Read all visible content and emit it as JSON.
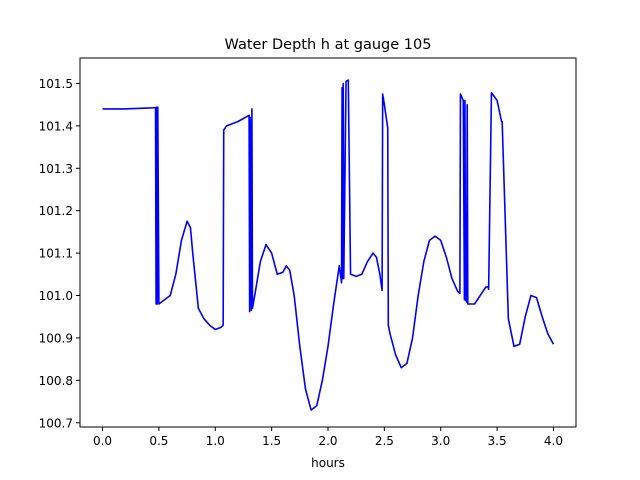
{
  "chart_data": {
    "type": "line",
    "title": "Water Depth h at gauge 105",
    "xlabel": "hours",
    "ylabel": "",
    "xlim": [
      -0.2,
      4.2
    ],
    "ylim": [
      100.69,
      101.56
    ],
    "xticks": [
      0.0,
      0.5,
      1.0,
      1.5,
      2.0,
      2.5,
      3.0,
      3.5,
      4.0
    ],
    "xtick_labels": [
      "0.0",
      "0.5",
      "1.0",
      "1.5",
      "2.0",
      "2.5",
      "3.0",
      "3.5",
      "4.0"
    ],
    "yticks": [
      100.7,
      100.8,
      100.9,
      101.0,
      101.1,
      101.2,
      101.3,
      101.4,
      101.5
    ],
    "ytick_labels": [
      "100.7",
      "100.8",
      "100.9",
      "101.0",
      "101.1",
      "101.2",
      "101.3",
      "101.4",
      "101.5"
    ],
    "grid": false,
    "line_color": "#0000ff",
    "series": [
      {
        "x": [
          0.0,
          0.2,
          0.4,
          0.47,
          0.475,
          0.48,
          0.485,
          0.49,
          0.5,
          0.6,
          0.65,
          0.7,
          0.75,
          0.78,
          0.8,
          0.85,
          0.9,
          0.95,
          1.0,
          1.05,
          1.07,
          1.075,
          1.1,
          1.2,
          1.3,
          1.305,
          1.31,
          1.32,
          1.325,
          1.33,
          1.35,
          1.4,
          1.45,
          1.5,
          1.55,
          1.6,
          1.63,
          1.66,
          1.7,
          1.75,
          1.8,
          1.85,
          1.9,
          1.95,
          2.0,
          2.05,
          2.1,
          2.12,
          2.125,
          2.13,
          2.135,
          2.14,
          2.16,
          2.18,
          2.2,
          2.25,
          2.3,
          2.35,
          2.4,
          2.43,
          2.46,
          2.48,
          2.485,
          2.5,
          2.53,
          2.535,
          2.55,
          2.6,
          2.65,
          2.7,
          2.75,
          2.8,
          2.85,
          2.9,
          2.95,
          3.0,
          3.05,
          3.1,
          3.15,
          3.17,
          3.175,
          3.2,
          3.21,
          3.215,
          3.22,
          3.23,
          3.235,
          3.24,
          3.3,
          3.35,
          3.4,
          3.42,
          3.425,
          3.45,
          3.5,
          3.54,
          3.545,
          3.6,
          3.65,
          3.7,
          3.75,
          3.8,
          3.85,
          3.9,
          3.95,
          4.0
        ],
        "y": [
          101.44,
          101.44,
          101.442,
          101.443,
          100.98,
          101.444,
          100.98,
          101.444,
          100.98,
          101.0,
          101.05,
          101.13,
          101.175,
          101.16,
          101.1,
          100.97,
          100.945,
          100.93,
          100.92,
          100.925,
          100.93,
          101.39,
          101.4,
          101.41,
          101.425,
          100.962,
          101.42,
          100.965,
          101.44,
          100.97,
          101.0,
          101.08,
          101.12,
          101.1,
          101.05,
          101.055,
          101.07,
          101.06,
          101.0,
          100.88,
          100.78,
          100.73,
          100.74,
          100.8,
          100.88,
          100.98,
          101.07,
          101.03,
          101.49,
          101.04,
          101.5,
          101.04,
          101.505,
          101.508,
          101.05,
          101.045,
          101.05,
          101.08,
          101.1,
          101.09,
          101.05,
          101.012,
          101.475,
          101.45,
          101.395,
          100.93,
          100.91,
          100.86,
          100.83,
          100.84,
          100.9,
          101.0,
          101.08,
          101.13,
          101.14,
          101.13,
          101.09,
          101.04,
          101.01,
          101.005,
          101.475,
          101.46,
          100.99,
          101.46,
          100.99,
          100.985,
          101.45,
          100.98,
          100.98,
          101.0,
          101.02,
          101.02,
          101.015,
          101.478,
          101.46,
          101.41,
          101.41,
          100.945,
          100.88,
          100.885,
          100.95,
          101.0,
          100.995,
          100.95,
          100.91,
          100.885
        ]
      }
    ]
  }
}
